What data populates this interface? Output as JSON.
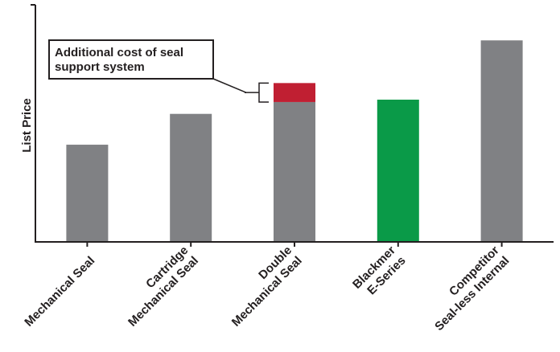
{
  "chart_data": {
    "type": "bar",
    "ylabel": "List Price",
    "xlabel": "",
    "ylim": [
      0,
      100
    ],
    "grid": false,
    "categories": [
      [
        "Mechanical Seal"
      ],
      [
        "Cartridge",
        "Mechanical Seal"
      ],
      [
        "Double",
        "Mechanical Seal"
      ],
      [
        "Blackmer",
        "E-Series"
      ],
      [
        "Competitor",
        "Seal-less Internal"
      ]
    ],
    "series": [
      {
        "values": [
          41,
          54,
          59,
          60,
          85
        ],
        "colors": [
          "#808184",
          "#808184",
          "#808184",
          "#0a9a48",
          "#808184"
        ]
      },
      {
        "values": [
          0,
          0,
          8,
          0,
          0
        ],
        "color": "#c01f32"
      }
    ],
    "annotation": {
      "text": [
        "Additional cost of seal",
        "support system"
      ],
      "target_category": 2
    }
  }
}
